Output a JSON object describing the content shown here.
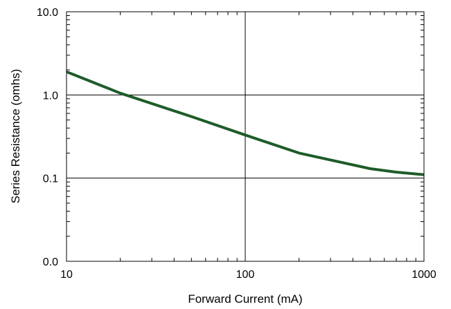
{
  "chart_data": {
    "type": "line",
    "title": "",
    "xlabel": "Forward Current (mA)",
    "ylabel": "Series Resistance (omhs)",
    "x_scale": "log",
    "y_scale": "log",
    "xlim": [
      10,
      1000
    ],
    "ylim": [
      0.01,
      10
    ],
    "x_tick_values": [
      10,
      100,
      1000
    ],
    "x_tick_labels": [
      "10",
      "100",
      "1000"
    ],
    "y_tick_values": [
      10,
      1,
      0.1,
      0.01
    ],
    "y_tick_labels": [
      "10.0",
      "1.0",
      "0.1",
      "0.0"
    ],
    "grid": true,
    "legend": "none",
    "series": [
      {
        "color": "#1e5c28",
        "x": [
          10,
          20,
          50,
          100,
          200,
          500,
          700,
          1000
        ],
        "y": [
          1.9,
          1.05,
          0.55,
          0.33,
          0.2,
          0.13,
          0.118,
          0.11
        ]
      }
    ]
  }
}
